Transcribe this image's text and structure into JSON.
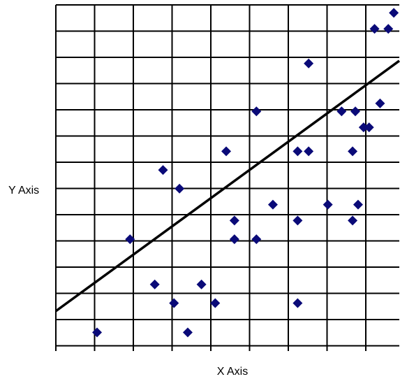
{
  "chart_data": {
    "type": "scatter",
    "title": "",
    "xlabel": "X Axis",
    "ylabel": "Y Axis",
    "xlim": [
      0,
      12.5
    ],
    "ylim": [
      0,
      13
    ],
    "grid": true,
    "legend": "none",
    "series": [
      {
        "marker": "diamond",
        "color": "#0a0a78",
        "points": [
          [
            1.5,
            0.7
          ],
          [
            2.7,
            4.2
          ],
          [
            3.6,
            2.5
          ],
          [
            3.9,
            6.8
          ],
          [
            4.3,
            1.8
          ],
          [
            4.5,
            6.1
          ],
          [
            4.8,
            0.7
          ],
          [
            5.3,
            2.5
          ],
          [
            5.8,
            1.8
          ],
          [
            6.2,
            7.5
          ],
          [
            6.5,
            4.9
          ],
          [
            6.5,
            4.2
          ],
          [
            7.3,
            4.2
          ],
          [
            7.3,
            9.0
          ],
          [
            7.9,
            5.5
          ],
          [
            8.8,
            7.5
          ],
          [
            8.8,
            4.9
          ],
          [
            8.8,
            1.8
          ],
          [
            9.2,
            10.8
          ],
          [
            9.2,
            7.5
          ],
          [
            9.9,
            5.5
          ],
          [
            10.4,
            9.0
          ],
          [
            10.8,
            7.5
          ],
          [
            10.8,
            4.9
          ],
          [
            10.9,
            9.0
          ],
          [
            11.0,
            5.5
          ],
          [
            11.2,
            8.4
          ],
          [
            11.4,
            8.4
          ],
          [
            11.6,
            12.1
          ],
          [
            11.8,
            9.3
          ],
          [
            12.1,
            12.1
          ],
          [
            12.3,
            12.7
          ]
        ]
      }
    ],
    "trendline": {
      "x": [
        0,
        12.5
      ],
      "y": [
        1.5,
        10.9
      ]
    }
  }
}
